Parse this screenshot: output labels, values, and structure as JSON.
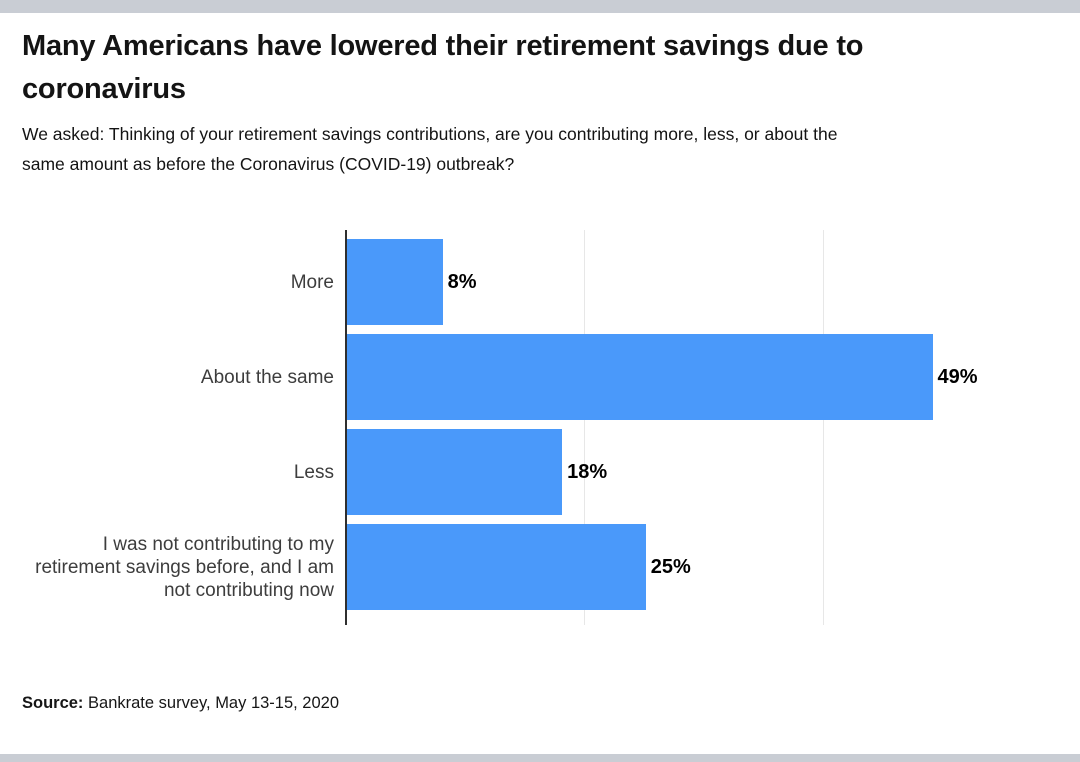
{
  "page": {
    "title": "Many Americans have lowered their retirement savings due to coronavirus",
    "subtitle": "We asked: Thinking of your retirement savings contributions, are you contributing more, less, or about the same amount as before the Coronavirus (COVID-19) outbreak?",
    "source_label": "Source:",
    "source_text": " Bankrate survey, May 13-15, 2020"
  },
  "colors": {
    "bar": "#4a99fa",
    "axis": "#2f2f2f",
    "gridline": "#e7e7e7",
    "band": "#c9cdd4",
    "title_text": "#141414",
    "category_label": "#3d3d3d",
    "value_label": "#000000",
    "source_text": "#161616"
  },
  "chart_data": {
    "type": "bar",
    "orientation": "horizontal",
    "title": "Many Americans have lowered their retirement savings due to coronavirus",
    "categories": [
      "More",
      "About the same",
      "Less",
      "I was not contributing to my\nretirement savings before, and I am\nnot contributing now"
    ],
    "values": [
      8,
      49,
      18,
      25
    ],
    "value_labels": [
      "8%",
      "49%",
      "18%",
      "25%"
    ],
    "xlabel": "",
    "ylabel": "",
    "xlim": [
      0,
      61
    ],
    "gridline_percents": [
      20,
      40
    ],
    "grid": true,
    "legend": false,
    "bar_color": "#4a99fa"
  }
}
